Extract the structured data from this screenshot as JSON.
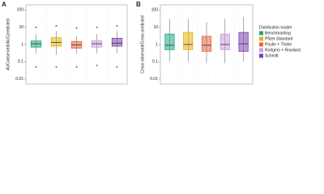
{
  "chart_data": [
    {
      "type": "box",
      "label": "A",
      "y_label": "AUCobserved/AUCpredicted",
      "log": true,
      "ylim": [
        0.005,
        200
      ],
      "yticks": [
        0.01,
        0.1,
        1,
        10,
        100
      ],
      "outlier_color": "#e0302a",
      "series": [
        {
          "color": "#1fa784",
          "min": 0.3,
          "q1": 0.7,
          "median": 1.1,
          "q3": 1.6,
          "max": 4,
          "outliers": [
            10,
            0.05
          ]
        },
        {
          "color": "#e8b30f",
          "min": 0.25,
          "q1": 0.8,
          "median": 1.3,
          "q3": 2.5,
          "max": 6,
          "outliers": [
            12,
            0.05
          ]
        },
        {
          "color": "#e8623a",
          "min": 0.3,
          "q1": 0.6,
          "median": 0.95,
          "q3": 1.5,
          "max": 3,
          "outliers": [
            9,
            0.05
          ]
        },
        {
          "color": "#c79fdc",
          "min": 0.3,
          "q1": 0.7,
          "median": 1.1,
          "q3": 1.7,
          "max": 4,
          "outliers": [
            10,
            0.06
          ]
        },
        {
          "color": "#7b3fb0",
          "min": 0.3,
          "q1": 0.8,
          "median": 1.2,
          "q3": 2.3,
          "max": 6,
          "outliers": [
            12,
            0.05
          ]
        }
      ]
    },
    {
      "type": "box",
      "label": "B",
      "y_label": "Cmax observed/Cmax predicted",
      "log": true,
      "ylim": [
        0.005,
        200
      ],
      "yticks": [
        0.01,
        0.1,
        1,
        10,
        100
      ],
      "outlier_color": "#e0302a",
      "legend": {
        "title": "Distribution model",
        "names": [
          "Benchmarking",
          "Pfizer Standard",
          "Poulin + Theile",
          "Rodgers + Rowland",
          "Schmitt"
        ]
      },
      "series": [
        {
          "color": "#1fa784",
          "min": 0.1,
          "q1": 0.5,
          "median": 0.9,
          "q3": 4,
          "max": 30,
          "outliers": []
        },
        {
          "color": "#e8b30f",
          "min": 0.1,
          "q1": 0.5,
          "median": 1,
          "q3": 5,
          "max": 30,
          "outliers": []
        },
        {
          "color": "#e8623a",
          "min": 0.08,
          "q1": 0.4,
          "median": 0.9,
          "q3": 3,
          "max": 20,
          "outliers": []
        },
        {
          "color": "#c79fdc",
          "min": 0.08,
          "q1": 0.5,
          "median": 1,
          "q3": 4,
          "max": 30,
          "outliers": []
        },
        {
          "color": "#7b3fb0",
          "min": 0.1,
          "q1": 0.4,
          "median": 1.1,
          "q3": 5,
          "max": 40,
          "outliers": []
        }
      ]
    }
  ]
}
